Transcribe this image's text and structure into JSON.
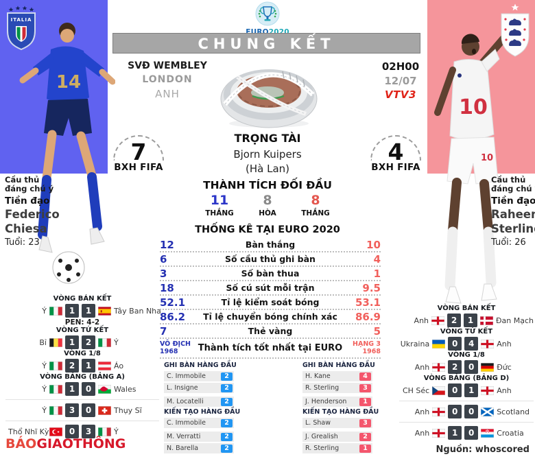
{
  "header": {
    "logo_text_euro": "EURO",
    "logo_text_year": "2020",
    "title": "CHUNG KẾT",
    "venue": {
      "stadium": "SVĐ WEMBLEY",
      "city": "LONDON",
      "country": "ANH"
    },
    "kickoff": {
      "time": "02H00",
      "date": "12/07",
      "channel": "VTV3"
    }
  },
  "referee": {
    "heading": "TRỌNG TÀI",
    "name": "Bjorn Kuipers",
    "nationality": "(Hà Lan)"
  },
  "fifa": {
    "label": "BXH FIFA",
    "home_rank": "7",
    "away_rank": "4"
  },
  "head_to_head": {
    "title": "THÀNH TÍCH ĐỐI ĐẦU",
    "items": [
      {
        "value": "11",
        "label": "THẮNG",
        "color": "#2b35c8"
      },
      {
        "value": "8",
        "label": "HÒA",
        "color": "#8a8a8a"
      },
      {
        "value": "8",
        "label": "THẮNG",
        "color": "#e4574f"
      }
    ]
  },
  "stats": {
    "title": "THỐNG KÊ TẠI EURO 2020",
    "home_color": "#2430b2",
    "away_color": "#f1605c",
    "rows": [
      {
        "home": "12",
        "label": "Bàn thắng",
        "away": "10"
      },
      {
        "home": "6",
        "label": "Số cầu thủ ghi bàn",
        "away": "4"
      },
      {
        "home": "3",
        "label": "Số bàn thua",
        "away": "1"
      },
      {
        "home": "18",
        "label": "Số cú sút mỗi trận",
        "away": "9.5"
      },
      {
        "home": "52.1",
        "label": "Tỉ lệ kiểm soát bóng",
        "away": "53.1"
      },
      {
        "home": "86.2",
        "label": "Tỉ lệ chuyển bóng chính xác",
        "away": "86.9"
      },
      {
        "home": "7",
        "label": "Thẻ vàng",
        "away": "5"
      }
    ],
    "best": {
      "home": [
        "VÔ ĐỊCH",
        "1968"
      ],
      "label": "Thành tích tốt nhất tại EURO",
      "away": [
        "HẠNG 3",
        "1968"
      ]
    }
  },
  "leaders": {
    "home": {
      "accent": "#2196f3",
      "sections": [
        {
          "title": "GHI BÀN HÀNG ĐẦU",
          "rows": [
            [
              "C. Immobile",
              "2"
            ],
            [
              "L. Insigne",
              "2"
            ],
            [
              "M. Locatelli",
              "2"
            ]
          ]
        },
        {
          "title": "KIẾN TẠO HÀNG ĐẦU",
          "rows": [
            [
              "C. Immobile",
              "2"
            ],
            [
              "M. Verratti",
              "2"
            ],
            [
              "N. Barella",
              "2"
            ]
          ]
        }
      ]
    },
    "away": {
      "accent": "#f4566d",
      "sections": [
        {
          "title": "GHI BÀN HÀNG ĐẦU",
          "rows": [
            [
              "H. Kane",
              "4"
            ],
            [
              "R. Sterling",
              "3"
            ],
            [
              "J. Henderson",
              "1"
            ]
          ]
        },
        {
          "title": "KIẾN TẠO HÀNG ĐẦU",
          "rows": [
            [
              "L. Shaw",
              "3"
            ],
            [
              "J. Grealish",
              "2"
            ],
            [
              "R. Sterling",
              "1"
            ]
          ]
        }
      ]
    }
  },
  "matches": {
    "home": [
      {
        "round": "VÒNG BÁN KẾT",
        "left_label": "Ý",
        "left_flag": "italy",
        "s1": "1",
        "s2": "1",
        "right_flag": "spain",
        "right_label": "Tây Ban Nha",
        "note": "PEN: 4-2"
      },
      {
        "round": "VÒNG TỨ KẾT",
        "left_label": "Bỉ",
        "left_flag": "belgium",
        "s1": "1",
        "s2": "2",
        "right_flag": "italy",
        "right_label": "Ý"
      },
      {
        "round": "VÒNG 1/8",
        "left_label": "Ý",
        "left_flag": "italy",
        "s1": "2",
        "s2": "1",
        "right_flag": "austria",
        "right_label": "Áo"
      },
      {
        "round": "VÒNG BẢNG (BẢNG A)",
        "left_label": "Ý",
        "left_flag": "italy",
        "s1": "1",
        "s2": "0",
        "right_flag": "wales",
        "right_label": "Wales"
      },
      {
        "divider": true,
        "left_label": "Ý",
        "left_flag": "italy",
        "s1": "3",
        "s2": "0",
        "right_flag": "switzerland",
        "right_label": "Thụy Sĩ"
      },
      {
        "divider": true,
        "left_label": "Thổ Nhĩ Kỳ",
        "left_flag": "turkey",
        "s1": "0",
        "s2": "3",
        "right_flag": "italy",
        "right_label": "Ý"
      }
    ],
    "away": [
      {
        "round": "VÒNG BÁN KẾT",
        "left_label": "Anh",
        "left_flag": "england",
        "s1": "2",
        "s2": "1",
        "right_flag": "denmark",
        "right_label": "Đan Mạch"
      },
      {
        "round": "VÒNG TỨ KẾT",
        "left_label": "Ukraina",
        "left_flag": "ukraine",
        "s1": "0",
        "s2": "4",
        "right_flag": "england",
        "right_label": "Anh"
      },
      {
        "round": "VÒNG 1/8",
        "left_label": "Anh",
        "left_flag": "england",
        "s1": "2",
        "s2": "0",
        "right_flag": "germany",
        "right_label": "Đức"
      },
      {
        "round": "VÒNG BẢNG (BẢNG D)",
        "left_label": "CH Séc",
        "left_flag": "czech",
        "s1": "0",
        "s2": "1",
        "right_flag": "england",
        "right_label": "Anh"
      },
      {
        "divider": true,
        "left_label": "Anh",
        "left_flag": "england",
        "s1": "0",
        "s2": "0",
        "right_flag": "scotland",
        "right_label": "Scotland"
      },
      {
        "divider": true,
        "left_label": "Anh",
        "left_flag": "england",
        "s1": "1",
        "s2": "0",
        "right_flag": "croatia",
        "right_label": "Croatia"
      }
    ]
  },
  "players": {
    "home": {
      "note1": "Cầu thủ",
      "note2": "đáng chú ý",
      "position": "Tiền đạo",
      "name1": "Federico",
      "name2": "Chiesa",
      "age": "Tuổi: 23",
      "jersey_number": "14",
      "badge_text": "ITALIA"
    },
    "away": {
      "note1": "Cầu thủ",
      "note2": "đáng chú ý",
      "position": "Tiền đạo",
      "name1": "Raheem",
      "name2": "Sterling",
      "age": "Tuổi: 26",
      "jersey_number": "10"
    }
  },
  "footer": {
    "publisher_light": "BÁO",
    "publisher_bold": "GIAOTHÔNG",
    "source": "Nguồn: whoscored"
  },
  "colors": {
    "home_panel": "#6062f0",
    "away_panel": "#f5959b",
    "score_box": "#3b424a",
    "banner_bg": "#a6a6a6"
  }
}
